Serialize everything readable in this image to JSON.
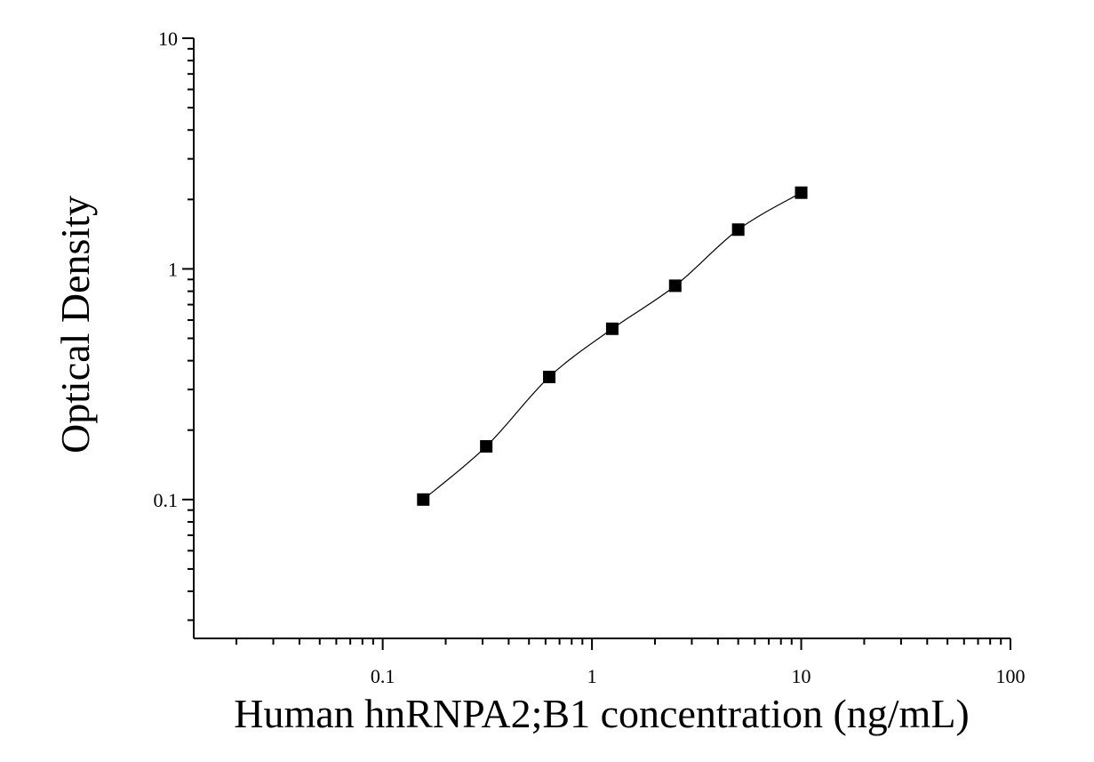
{
  "chart_data": {
    "type": "scatter",
    "x_label": "Human hnRNPA2;B1 concentration (ng/mL)",
    "y_label": "Optical Density",
    "x": [
      0.15625,
      0.3125,
      0.625,
      1.25,
      2.5,
      5,
      10
    ],
    "series": [
      {
        "color": "#000000",
        "values": [
          0.1,
          0.17,
          0.34,
          0.55,
          0.845,
          1.48,
          2.14
        ]
      }
    ],
    "fit_line": true,
    "xlog": true,
    "ylog": true,
    "xlim": [
      0.0125,
      100
    ],
    "ylim": [
      0.025,
      10
    ],
    "xticks": [
      0.1,
      1,
      10,
      100
    ],
    "yticks": [
      0.1,
      1,
      10
    ]
  }
}
